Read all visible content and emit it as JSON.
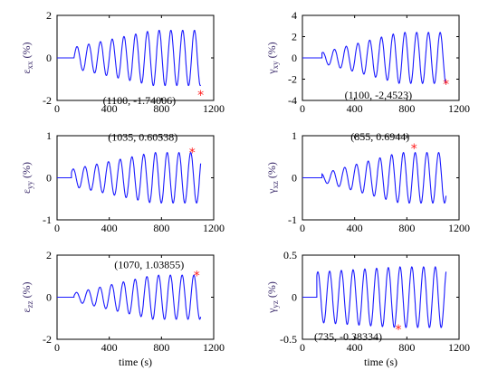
{
  "chart_data": [
    {
      "type": "line",
      "ylabel": {
        "symbol": "ε",
        "sub": "xx",
        "unit": "(%)"
      },
      "xlabel": "",
      "xlim": [
        0,
        1200
      ],
      "ylim": [
        -2,
        2
      ],
      "xticks": [
        0,
        400,
        800,
        1200
      ],
      "yticks": [
        -2,
        0,
        2
      ],
      "signal": {
        "t_start": 130,
        "t_end": 1100,
        "amp_start": 0.5,
        "amp_end": 1.3,
        "period": 90,
        "baseline": 0.0,
        "phase": 0
      },
      "annotation": {
        "point": [
          1100,
          -1.74006
        ],
        "label": "(1100, -1.74006)"
      }
    },
    {
      "type": "line",
      "ylabel": {
        "symbol": "γ",
        "sub": "xy",
        "unit": "(%)"
      },
      "xlabel": "",
      "xlim": [
        0,
        1200
      ],
      "ylim": [
        -4,
        4
      ],
      "xticks": [
        0,
        400,
        800,
        1200
      ],
      "yticks": [
        -4,
        -2,
        0,
        2,
        4
      ],
      "signal": {
        "t_start": 150,
        "t_end": 1100,
        "amp_start": 0.5,
        "amp_end": 2.4,
        "period": 90,
        "baseline": 0.0,
        "phase": 1.2
      },
      "annotation": {
        "point": [
          1100,
          -2.4523
        ],
        "label": "(1100, -2,4523)"
      }
    },
    {
      "type": "line",
      "ylabel": {
        "symbol": "ε",
        "sub": "yy",
        "unit": "(%)"
      },
      "xlabel": "",
      "xlim": [
        0,
        1200
      ],
      "ylim": [
        -1,
        1
      ],
      "xticks": [
        0,
        400,
        800,
        1200
      ],
      "yticks": [
        -1,
        0,
        1
      ],
      "signal": {
        "t_start": 110,
        "t_end": 1100,
        "amp_start": 0.2,
        "amp_end": 0.6,
        "period": 90,
        "baseline": 0.0,
        "phase": 0.6
      },
      "annotation": {
        "point": [
          1035,
          0.60538
        ],
        "label": "(1035, 0.60538)"
      }
    },
    {
      "type": "line",
      "ylabel": {
        "symbol": "γ",
        "sub": "xz",
        "unit": "(%)"
      },
      "xlabel": "",
      "xlim": [
        0,
        1200
      ],
      "ylim": [
        -1,
        1
      ],
      "xticks": [
        0,
        400,
        800,
        1200
      ],
      "yticks": [
        -1,
        0,
        1
      ],
      "signal": {
        "t_start": 150,
        "t_end": 1100,
        "amp_start": 0.1,
        "amp_end": 0.6,
        "period": 90,
        "baseline": 0.0,
        "phase": 2.0
      },
      "annotation": {
        "point": [
          855,
          0.6944
        ],
        "label": "(855, 0.6944)"
      }
    },
    {
      "type": "line",
      "ylabel": {
        "symbol": "ε",
        "sub": "zz",
        "unit": "(%)"
      },
      "xlabel": "time (s)",
      "xlim": [
        0,
        1200
      ],
      "ylim": [
        -2,
        2
      ],
      "xticks": [
        0,
        400,
        800,
        1200
      ],
      "yticks": [
        -2,
        0,
        2
      ],
      "signal": {
        "t_start": 130,
        "t_end": 1100,
        "amp_start": 0.2,
        "amp_end": 1.05,
        "period": 90,
        "baseline": 0.0,
        "phase": 0.3
      },
      "annotation": {
        "point": [
          1070,
          1.03855
        ],
        "label": "(1070, 1.03855)"
      }
    },
    {
      "type": "line",
      "ylabel": {
        "symbol": "γ",
        "sub": "yz",
        "unit": "(%)"
      },
      "xlabel": "time (s)",
      "xlim": [
        0,
        1200
      ],
      "ylim": [
        -0.5,
        0.5
      ],
      "xticks": [
        0,
        400,
        800,
        1200
      ],
      "yticks": [
        -0.5,
        0,
        0.5
      ],
      "signal": {
        "t_start": 110,
        "t_end": 1100,
        "amp_start": 0.3,
        "amp_end": 0.36,
        "period": 90,
        "baseline": 0.0,
        "phase": 1.0
      },
      "annotation": {
        "point": [
          735,
          -0.38334
        ],
        "label": "(735, -0.38334)"
      }
    }
  ]
}
